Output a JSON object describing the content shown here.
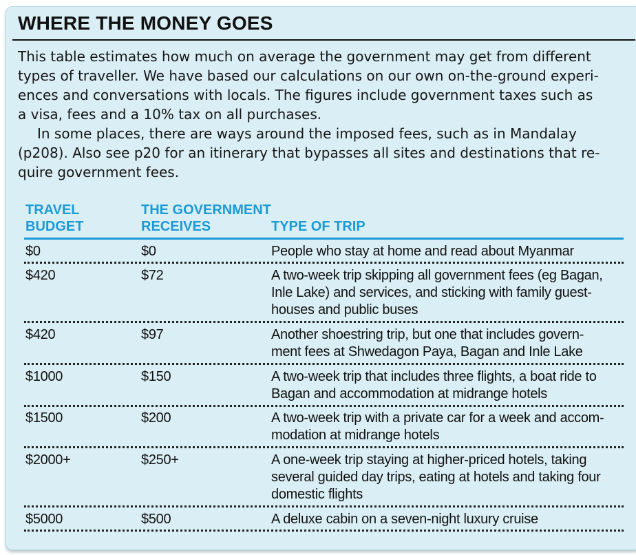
{
  "title": "WHERE THE MONEY GOES",
  "intro": {
    "para1": [
      "This table estimates how much on average the government may get from different",
      "types of traveller. We have based our calculations on our own on-the-ground experi-",
      "ences and conversations with locals. The figures include government taxes such as",
      "a visa, fees and a 10% tax on all purchases."
    ],
    "para2": [
      "In some places, there are ways around the imposed fees, such as in Mandalay",
      "(p208). Also see p20 for an itinerary that bypasses all sites and destinations that re-",
      "quire government fees."
    ]
  },
  "table": {
    "headers": {
      "budget": [
        "TRAVEL",
        "BUDGET"
      ],
      "government": [
        "THE GOVERNMENT",
        "RECEIVES"
      ],
      "type": "TYPE OF TRIP"
    },
    "rows": [
      {
        "budget": "$0",
        "government": "$0",
        "type": [
          "People who stay at home and read about Myanmar"
        ]
      },
      {
        "budget": "$420",
        "government": "$72",
        "type": [
          "A two-week trip skipping all government fees (eg Bagan,",
          "Inle Lake) and services, and sticking with family guest-",
          "houses and public buses"
        ]
      },
      {
        "budget": "$420",
        "government": "$97",
        "type": [
          "Another shoestring trip, but one that includes govern-",
          "ment fees at Shwedagon Paya, Bagan and Inle Lake"
        ]
      },
      {
        "budget": "$1000",
        "government": "$150",
        "type": [
          "A two-week trip that includes three flights, a boat ride to",
          "Bagan and accommodation at midrange hotels"
        ]
      },
      {
        "budget": "$1500",
        "government": "$200",
        "type": [
          "A two-week trip with a private car for a week and accom-",
          "modation at midrange hotels"
        ]
      },
      {
        "budget": "$2000+",
        "government": "$250+",
        "type": [
          "A one-week trip staying at higher-priced hotels, taking",
          "several guided day trips, eating at hotels and taking four",
          "domestic flights"
        ]
      },
      {
        "budget": "$5000",
        "government": "$500",
        "type": [
          "A deluxe cabin on a seven-night luxury cruise"
        ]
      }
    ]
  }
}
